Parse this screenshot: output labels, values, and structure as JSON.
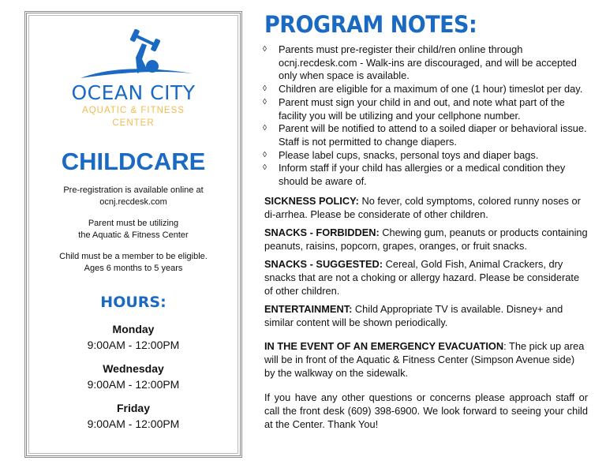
{
  "left": {
    "logo": {
      "line1": "OCEAN CITY",
      "line2": "AQUATIC & FITNESS",
      "line3": "CENTER",
      "primary_color": "#1a6ac4",
      "secondary_color": "#f2bb4a"
    },
    "title": "CHILDCARE",
    "info": [
      [
        "Pre-registration is available online at",
        "ocnj.recdesk.com"
      ],
      [
        "Parent must be utilizing",
        "the Aquatic & Fitness Center"
      ],
      [
        "Child must be a member to be eligible.",
        "Ages 6 months to 5 years"
      ]
    ],
    "hours_title": "HOURS:",
    "hours": [
      {
        "day": "Monday",
        "time": "9:00AM - 12:00PM"
      },
      {
        "day": "Wednesday",
        "time": "9:00AM - 12:00PM"
      },
      {
        "day": "Friday",
        "time": "9:00AM - 12:00PM"
      }
    ]
  },
  "right": {
    "title": "PROGRAM NOTES:",
    "bullet_icon": "diamond-outline",
    "bullets": [
      "Parents must pre-register their child/ren online through ocnj.recdesk.com -  Walk-ins are discouraged, and will be accepted only when space is available.",
      "Children are eligible for a maximum of one (1 hour) timeslot per day.",
      "Parent must sign your child in and out, and note what part of the facility you will be utilizing and your cellphone number.",
      "Parent will be notified to attend to a soiled diaper or behavioral issue. Staff is not permitted to change diapers.",
      "Please label cups, snacks, personal toys and diaper bags.",
      "Inform staff if your child has allergies or a medical condition they should be aware of."
    ],
    "sections": [
      {
        "label": "SICKNESS POLICY:",
        "text": " No fever, cold symptoms, colored runny noses or di-arrhea.  Please be considerate of other children."
      },
      {
        "label": "SNACKS - FORBIDDEN:",
        "text": " Chewing gum, peanuts or products containing peanuts, raisins, popcorn, grapes, oranges, or fruit snacks."
      },
      {
        "label": "SNACKS - SUGGESTED:",
        "text": " Cereal, Gold Fish, Animal Crackers, dry snacks that are not a choking or allergy hazard. Please be considerate of other children."
      },
      {
        "label": "ENTERTAINMENT:",
        "text": " Child Appropriate TV is available. Disney+ and similar content will be shown periodically."
      },
      {
        "label": "IN THE EVENT OF AN EMERGENCY EVACUATION",
        "text": ": The pick up area will be in front of the Aquatic & Fitness Center (Simpson Avenue side) by the walkway on the sidewalk."
      },
      {
        "label": "",
        "text": "If you have any other questions or concerns please approach staff or call the front desk (609) 398-6900. We look forward to seeing your child at the Center.  Thank You!"
      }
    ]
  }
}
